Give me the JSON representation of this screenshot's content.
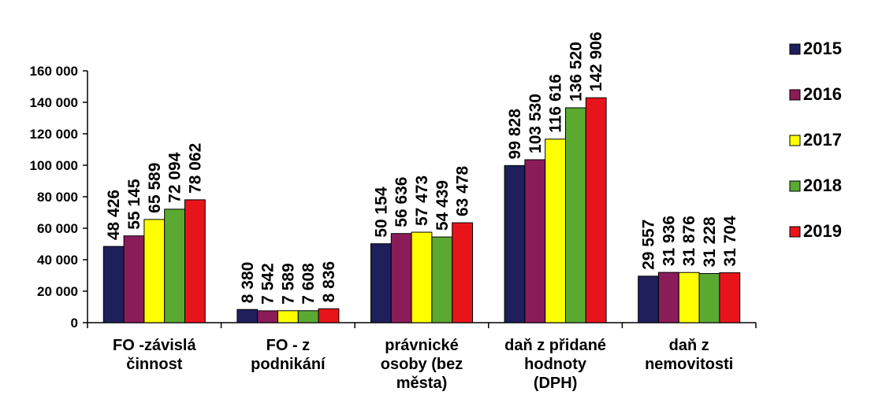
{
  "chart_data": {
    "type": "bar",
    "categories": [
      [
        "FO -závislá",
        "činnost"
      ],
      [
        "FO - z",
        "podnikání"
      ],
      [
        "právnické",
        "osoby (bez",
        "města)"
      ],
      [
        "daň z přidané",
        "hodnoty",
        "(DPH)"
      ],
      [
        "daň z",
        "nemovitosti"
      ]
    ],
    "series": [
      {
        "name": "2015",
        "color": "#1f1f5c",
        "values": [
          48426,
          8380,
          50154,
          99828,
          29557
        ],
        "labels": [
          "48 426",
          "8 380",
          "50 154",
          "99 828",
          "29 557"
        ]
      },
      {
        "name": "2016",
        "color": "#8b1c5a",
        "values": [
          55145,
          7542,
          56636,
          103530,
          31936
        ],
        "labels": [
          "55 145",
          "7 542",
          "56 636",
          "103 530",
          "31 936"
        ]
      },
      {
        "name": "2017",
        "color": "#ffff00",
        "values": [
          65589,
          7589,
          57473,
          116616,
          31876
        ],
        "labels": [
          "65 589",
          "7 589",
          "57 473",
          "116 616",
          "31 876"
        ]
      },
      {
        "name": "2018",
        "color": "#5aaa32",
        "values": [
          72094,
          7608,
          54439,
          136520,
          31228
        ],
        "labels": [
          "72 094",
          "7 608",
          "54 439",
          "136 520",
          "31 228"
        ]
      },
      {
        "name": "2019",
        "color": "#e8141c",
        "values": [
          78062,
          8836,
          63478,
          142906,
          31704
        ],
        "labels": [
          "78 062",
          "8 836",
          "63 478",
          "142 906",
          "31 704"
        ]
      }
    ],
    "yticks": [
      0,
      20000,
      40000,
      60000,
      80000,
      100000,
      120000,
      140000,
      160000
    ],
    "ytick_labels": [
      "0",
      "20 000",
      "40 000",
      "60 000",
      "80 000",
      "100 000",
      "120 000",
      "140 000",
      "160 000"
    ],
    "ylim": [
      0,
      160000
    ],
    "title": "",
    "xlabel": "",
    "ylabel": "",
    "grid": false,
    "legend": "right"
  }
}
